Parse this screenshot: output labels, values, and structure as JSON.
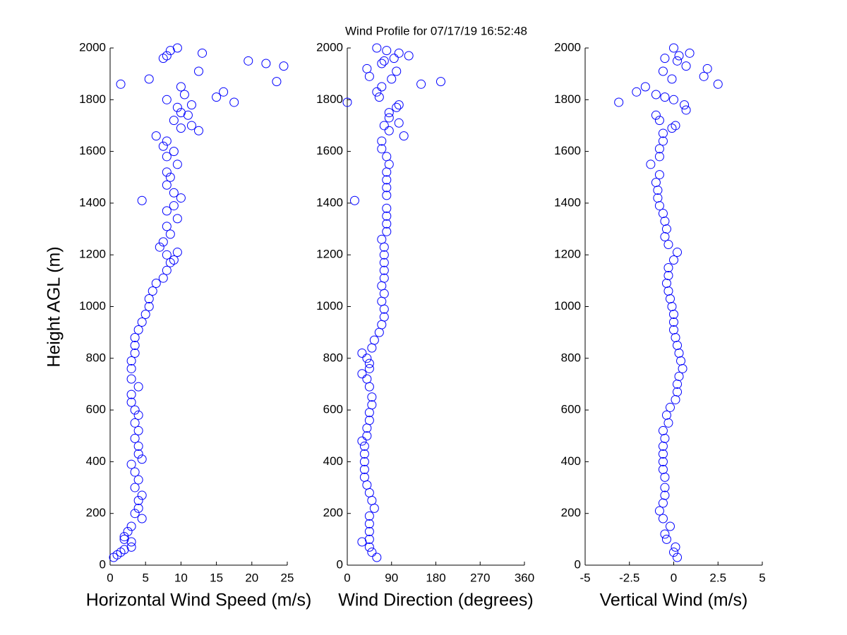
{
  "chart_data": [
    {
      "type": "scatter",
      "title": "Wind Profile for  07/17/19 16:52:48",
      "y_label": "Height AGL (m)",
      "x_label": "Horizontal Wind Speed (m/s)",
      "color": "#0000ff",
      "xlim": [
        0,
        25
      ],
      "xticks": [
        0,
        5,
        10,
        15,
        20,
        25
      ],
      "ylim": [
        0,
        2000
      ],
      "yticks": [
        0,
        200,
        400,
        600,
        800,
        1000,
        1200,
        1400,
        1600,
        1800,
        2000
      ],
      "y": [
        30,
        40,
        50,
        60,
        70,
        90,
        100,
        110,
        130,
        150,
        180,
        200,
        220,
        250,
        270,
        300,
        330,
        360,
        390,
        410,
        430,
        460,
        490,
        520,
        550,
        580,
        600,
        630,
        660,
        690,
        720,
        760,
        790,
        820,
        850,
        880,
        910,
        940,
        970,
        1000,
        1030,
        1060,
        1090,
        1110,
        1140,
        1170,
        1180,
        1200,
        1210,
        1230,
        1250,
        1280,
        1310,
        1340,
        1370,
        1390,
        1410,
        1420,
        1440,
        1470,
        1500,
        1520,
        1550,
        1580,
        1600,
        1620,
        1640,
        1660,
        1680,
        1690,
        1700,
        1720,
        1740,
        1750,
        1770,
        1780,
        1790,
        1800,
        1810,
        1820,
        1830,
        1850,
        1860,
        1870,
        1880,
        1910,
        1930,
        1940,
        1950,
        1960,
        1970,
        1980,
        1990,
        2000
      ],
      "x": [
        0.5,
        1,
        1.5,
        2,
        3,
        3,
        2,
        2,
        2.5,
        3,
        4.5,
        3.5,
        4,
        4,
        4.5,
        3.5,
        4,
        3.5,
        3,
        4.5,
        4,
        4,
        3.5,
        4,
        3.5,
        4,
        3.5,
        3,
        3,
        4,
        3,
        3,
        3,
        3.5,
        3.5,
        3.5,
        4,
        4.5,
        5,
        5.5,
        5.5,
        6,
        6.5,
        7.5,
        8,
        8.5,
        9,
        8,
        9.5,
        7,
        7.5,
        8.5,
        8,
        9.5,
        8,
        9,
        4.5,
        10,
        9,
        8,
        8.5,
        8,
        9.5,
        8,
        9,
        7.5,
        8,
        6.5,
        12.5,
        10,
        11.5,
        9,
        11,
        10,
        9.5,
        11.5,
        17.5,
        8,
        15,
        10.5,
        16,
        10,
        1.5,
        23.5,
        5.5,
        12.5,
        24.5,
        22,
        19.5,
        7.5,
        8,
        13,
        8.5,
        9.5
      ]
    },
    {
      "type": "scatter",
      "x_label": "Wind Direction (degrees)",
      "color": "#0000ff",
      "xlim": [
        0,
        360
      ],
      "xticks": [
        0,
        90,
        180,
        270,
        360
      ],
      "ylim": [
        0,
        2000
      ],
      "yticks": [
        0,
        200,
        400,
        600,
        800,
        1000,
        1200,
        1400,
        1600,
        1800,
        2000
      ],
      "y": [
        30,
        50,
        70,
        90,
        100,
        130,
        160,
        190,
        220,
        250,
        280,
        310,
        340,
        370,
        400,
        430,
        460,
        480,
        500,
        530,
        560,
        590,
        620,
        650,
        690,
        720,
        740,
        760,
        780,
        800,
        820,
        840,
        870,
        900,
        930,
        960,
        990,
        1020,
        1050,
        1080,
        1110,
        1140,
        1170,
        1200,
        1230,
        1260,
        1290,
        1320,
        1350,
        1380,
        1410,
        1430,
        1460,
        1490,
        1520,
        1550,
        1580,
        1610,
        1640,
        1660,
        1680,
        1700,
        1710,
        1730,
        1750,
        1770,
        1780,
        1790,
        1810,
        1830,
        1850,
        1860,
        1870,
        1880,
        1890,
        1910,
        1920,
        1940,
        1950,
        1960,
        1970,
        1980,
        1990,
        2000
      ],
      "x": [
        60,
        50,
        45,
        30,
        45,
        45,
        45,
        45,
        55,
        50,
        45,
        40,
        35,
        35,
        35,
        35,
        35,
        30,
        40,
        40,
        45,
        45,
        50,
        50,
        45,
        40,
        30,
        45,
        45,
        40,
        30,
        50,
        55,
        65,
        70,
        75,
        75,
        70,
        75,
        70,
        75,
        75,
        75,
        75,
        75,
        70,
        80,
        80,
        80,
        80,
        15,
        80,
        80,
        80,
        80,
        85,
        80,
        70,
        70,
        115,
        85,
        75,
        105,
        85,
        85,
        100,
        105,
        0,
        65,
        60,
        70,
        150,
        190,
        90,
        45,
        100,
        40,
        70,
        75,
        95,
        125,
        105,
        80,
        60
      ]
    },
    {
      "type": "scatter",
      "x_label": "Vertical Wind (m/s)",
      "color": "#0000ff",
      "xlim": [
        -5,
        5
      ],
      "xticks": [
        -5,
        -2.5,
        0,
        2.5,
        5
      ],
      "ylim": [
        0,
        2000
      ],
      "yticks": [
        0,
        200,
        400,
        600,
        800,
        1000,
        1200,
        1400,
        1600,
        1800,
        2000
      ],
      "y": [
        30,
        50,
        70,
        100,
        120,
        150,
        180,
        210,
        240,
        270,
        300,
        340,
        370,
        400,
        430,
        460,
        490,
        520,
        550,
        580,
        610,
        640,
        670,
        700,
        730,
        760,
        790,
        820,
        850,
        880,
        910,
        940,
        970,
        1000,
        1030,
        1060,
        1090,
        1120,
        1150,
        1180,
        1210,
        1240,
        1270,
        1300,
        1330,
        1360,
        1390,
        1420,
        1450,
        1480,
        1510,
        1550,
        1580,
        1610,
        1640,
        1670,
        1690,
        1700,
        1720,
        1740,
        1760,
        1780,
        1790,
        1800,
        1810,
        1820,
        1830,
        1850,
        1860,
        1880,
        1890,
        1910,
        1920,
        1930,
        1950,
        1960,
        1970,
        1980,
        2000
      ],
      "x": [
        0.2,
        0,
        0.1,
        -0.4,
        -0.5,
        -0.2,
        -0.6,
        -0.8,
        -0.6,
        -0.5,
        -0.5,
        -0.5,
        -0.6,
        -0.6,
        -0.6,
        -0.6,
        -0.5,
        -0.6,
        -0.3,
        -0.4,
        -0.2,
        0.1,
        0.2,
        0.2,
        0.3,
        0.5,
        0.4,
        0.3,
        0.2,
        0.1,
        0,
        0,
        0,
        -0.1,
        -0.2,
        -0.3,
        -0.4,
        -0.3,
        -0.3,
        0,
        0.2,
        -0.3,
        -0.5,
        -0.4,
        -0.5,
        -0.6,
        -0.8,
        -0.9,
        -0.9,
        -1,
        -0.8,
        -1.3,
        -0.8,
        -0.8,
        -0.6,
        -0.6,
        -0.1,
        0.1,
        -0.8,
        -1,
        0.7,
        0.6,
        -3.1,
        0,
        -0.5,
        -1,
        -2.1,
        -1.6,
        2.5,
        -0.1,
        1.7,
        -0.6,
        1.9,
        0.7,
        0.2,
        -0.5,
        0.3,
        0.9,
        0
      ]
    }
  ]
}
